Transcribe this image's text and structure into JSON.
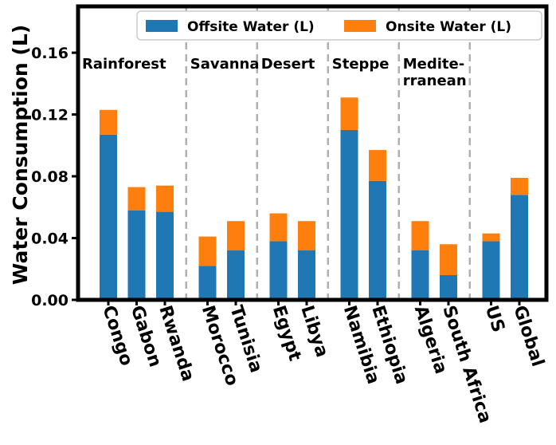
{
  "chart_data": {
    "type": "bar",
    "stacked": true,
    "title": "",
    "xlabel": "",
    "ylabel": "Water Consumption (L)",
    "ylim": [
      0,
      0.19
    ],
    "yticks": [
      0.0,
      0.04,
      0.08,
      0.12,
      0.16
    ],
    "ytick_labels": [
      "0.00",
      "0.04",
      "0.08",
      "0.12",
      "0.16"
    ],
    "categories": [
      "Congo",
      "Gabon",
      "Rwanda",
      "Morocco",
      "Tunisia",
      "Egypt",
      "Libya",
      "Namibia",
      "Ethiopia",
      "Algeria",
      "South Africa",
      "US",
      "Global"
    ],
    "series": [
      {
        "name": "Offsite Water (L)",
        "color": "#1f77b4",
        "values": [
          0.107,
          0.058,
          0.057,
          0.022,
          0.032,
          0.038,
          0.032,
          0.11,
          0.077,
          0.032,
          0.016,
          0.038,
          0.068
        ]
      },
      {
        "name": "Onsite Water (L)",
        "color": "#ff7f0e",
        "values": [
          0.016,
          0.015,
          0.017,
          0.019,
          0.019,
          0.018,
          0.019,
          0.021,
          0.02,
          0.019,
          0.02,
          0.005,
          0.011
        ]
      }
    ],
    "groups": [
      {
        "label": "Rainforest",
        "start": 0,
        "end": 2
      },
      {
        "label": "Savanna",
        "start": 3,
        "end": 4
      },
      {
        "label": "Desert",
        "start": 5,
        "end": 6
      },
      {
        "label": "Steppe",
        "start": 7,
        "end": 8
      },
      {
        "label": "Medite-\nrranean",
        "start": 9,
        "end": 10
      }
    ],
    "legend_position": "top-right",
    "grid": false
  }
}
